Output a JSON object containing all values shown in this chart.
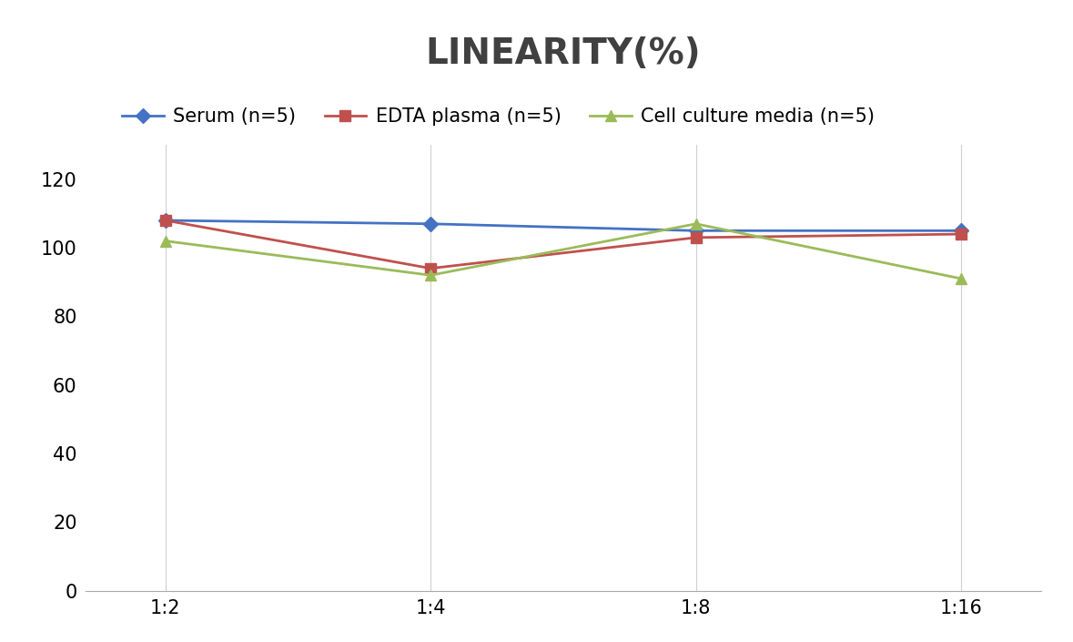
{
  "title": "LINEARITY(%)",
  "x_labels": [
    "1:2",
    "1:4",
    "1:8",
    "1:16"
  ],
  "series": [
    {
      "label": "Serum (n=5)",
      "values": [
        108,
        107,
        105,
        105
      ],
      "color": "#4472C4",
      "marker": "D",
      "marker_size": 8,
      "linewidth": 2.0
    },
    {
      "label": "EDTA plasma (n=5)",
      "values": [
        108,
        94,
        103,
        104
      ],
      "color": "#C0504D",
      "marker": "s",
      "marker_size": 8,
      "linewidth": 2.0
    },
    {
      "label": "Cell culture media (n=5)",
      "values": [
        102,
        92,
        107,
        91
      ],
      "color": "#9BBB59",
      "marker": "^",
      "marker_size": 9,
      "linewidth": 2.0
    }
  ],
  "ylim": [
    0,
    130
  ],
  "yticks": [
    0,
    20,
    40,
    60,
    80,
    100,
    120
  ],
  "background_color": "#FFFFFF",
  "grid_color": "#D0D0D0",
  "title_fontsize": 28,
  "title_color": "#404040",
  "legend_fontsize": 15,
  "tick_fontsize": 15
}
